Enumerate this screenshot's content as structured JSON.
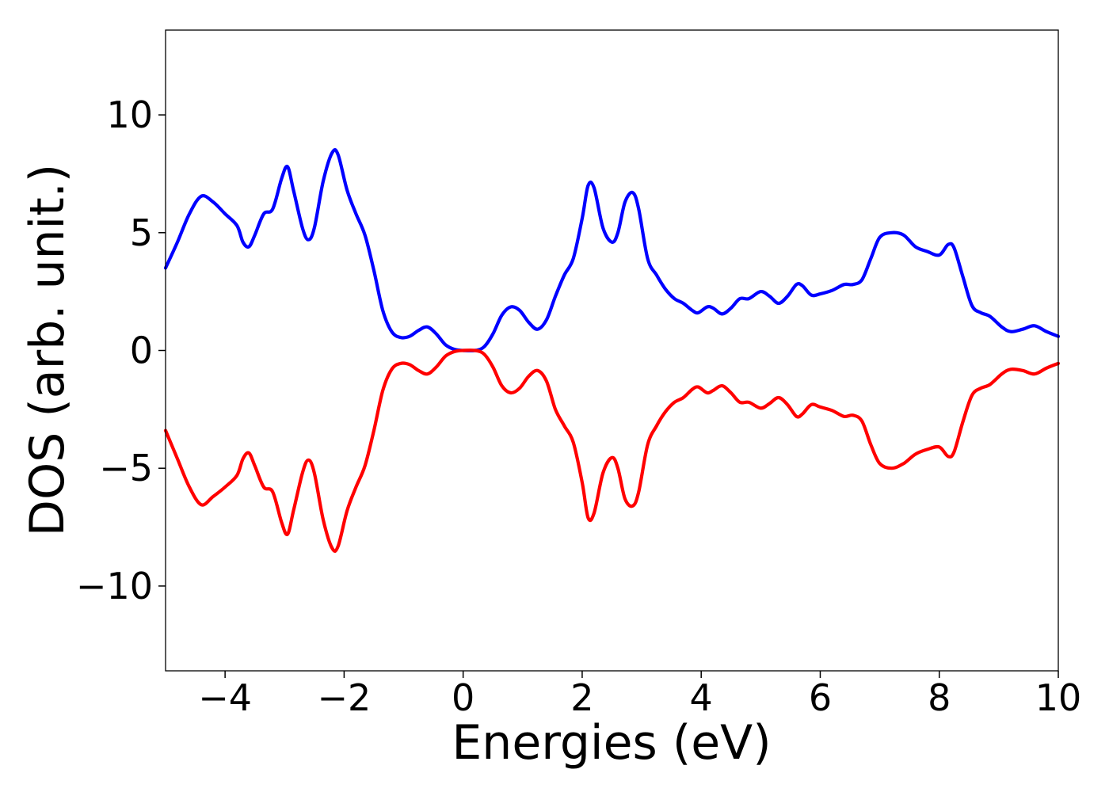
{
  "chart_data": {
    "type": "line",
    "title": "",
    "xlabel": "Energies (eV)",
    "ylabel": "DOS (arb. unit.)",
    "xlim": [
      -5,
      10
    ],
    "ylim": [
      -13.6,
      13.6
    ],
    "grid": false,
    "x_ticks": [
      -4,
      -2,
      0,
      2,
      4,
      6,
      8,
      10
    ],
    "x_tick_labels": [
      "−4",
      "−2",
      "0",
      "2",
      "4",
      "6",
      "8",
      "10"
    ],
    "y_ticks": [
      -10,
      -5,
      0,
      5,
      10
    ],
    "y_tick_labels": [
      "−10",
      "−5",
      "0",
      "5",
      "10"
    ],
    "series": [
      {
        "color": "#0000ff",
        "points": [
          [
            -5.0,
            3.5
          ],
          [
            -4.8,
            4.6
          ],
          [
            -4.6,
            5.8
          ],
          [
            -4.4,
            6.55
          ],
          [
            -4.2,
            6.3
          ],
          [
            -4.0,
            5.8
          ],
          [
            -3.8,
            5.3
          ],
          [
            -3.7,
            4.6
          ],
          [
            -3.6,
            4.4
          ],
          [
            -3.5,
            4.9
          ],
          [
            -3.35,
            5.8
          ],
          [
            -3.2,
            6.0
          ],
          [
            -3.05,
            7.3
          ],
          [
            -2.95,
            7.8
          ],
          [
            -2.85,
            6.8
          ],
          [
            -2.7,
            5.2
          ],
          [
            -2.6,
            4.7
          ],
          [
            -2.5,
            5.2
          ],
          [
            -2.35,
            7.2
          ],
          [
            -2.2,
            8.4
          ],
          [
            -2.1,
            8.3
          ],
          [
            -1.95,
            6.8
          ],
          [
            -1.8,
            5.8
          ],
          [
            -1.65,
            4.9
          ],
          [
            -1.5,
            3.4
          ],
          [
            -1.35,
            1.7
          ],
          [
            -1.2,
            0.8
          ],
          [
            -1.05,
            0.55
          ],
          [
            -0.9,
            0.6
          ],
          [
            -0.75,
            0.85
          ],
          [
            -0.6,
            1.0
          ],
          [
            -0.45,
            0.7
          ],
          [
            -0.3,
            0.25
          ],
          [
            -0.15,
            0.05
          ],
          [
            0.0,
            0.0
          ],
          [
            0.2,
            0.0
          ],
          [
            0.35,
            0.15
          ],
          [
            0.5,
            0.7
          ],
          [
            0.65,
            1.5
          ],
          [
            0.8,
            1.85
          ],
          [
            0.95,
            1.7
          ],
          [
            1.1,
            1.2
          ],
          [
            1.25,
            0.9
          ],
          [
            1.4,
            1.3
          ],
          [
            1.55,
            2.3
          ],
          [
            1.7,
            3.2
          ],
          [
            1.85,
            3.9
          ],
          [
            2.0,
            5.6
          ],
          [
            2.1,
            7.0
          ],
          [
            2.2,
            6.9
          ],
          [
            2.35,
            5.2
          ],
          [
            2.5,
            4.6
          ],
          [
            2.6,
            5.0
          ],
          [
            2.72,
            6.3
          ],
          [
            2.85,
            6.7
          ],
          [
            2.95,
            6.0
          ],
          [
            3.1,
            3.9
          ],
          [
            3.25,
            3.2
          ],
          [
            3.4,
            2.6
          ],
          [
            3.55,
            2.2
          ],
          [
            3.7,
            2.0
          ],
          [
            3.85,
            1.7
          ],
          [
            3.95,
            1.6
          ],
          [
            4.1,
            1.85
          ],
          [
            4.2,
            1.8
          ],
          [
            4.35,
            1.55
          ],
          [
            4.5,
            1.8
          ],
          [
            4.65,
            2.2
          ],
          [
            4.8,
            2.2
          ],
          [
            5.0,
            2.5
          ],
          [
            5.15,
            2.3
          ],
          [
            5.3,
            2.0
          ],
          [
            5.45,
            2.3
          ],
          [
            5.6,
            2.8
          ],
          [
            5.7,
            2.75
          ],
          [
            5.85,
            2.35
          ],
          [
            6.0,
            2.4
          ],
          [
            6.2,
            2.55
          ],
          [
            6.4,
            2.8
          ],
          [
            6.55,
            2.8
          ],
          [
            6.7,
            3.0
          ],
          [
            6.85,
            3.9
          ],
          [
            7.0,
            4.8
          ],
          [
            7.2,
            5.0
          ],
          [
            7.4,
            4.9
          ],
          [
            7.6,
            4.4
          ],
          [
            7.8,
            4.2
          ],
          [
            8.0,
            4.05
          ],
          [
            8.15,
            4.5
          ],
          [
            8.25,
            4.35
          ],
          [
            8.4,
            3.1
          ],
          [
            8.55,
            1.9
          ],
          [
            8.7,
            1.6
          ],
          [
            8.85,
            1.45
          ],
          [
            9.05,
            1.0
          ],
          [
            9.2,
            0.8
          ],
          [
            9.4,
            0.9
          ],
          [
            9.6,
            1.05
          ],
          [
            9.8,
            0.8
          ],
          [
            10.0,
            0.6
          ]
        ]
      },
      {
        "color": "#ff0000",
        "points": [
          [
            -5.0,
            -3.4
          ],
          [
            -4.8,
            -4.6
          ],
          [
            -4.6,
            -5.8
          ],
          [
            -4.4,
            -6.55
          ],
          [
            -4.2,
            -6.2
          ],
          [
            -4.0,
            -5.8
          ],
          [
            -3.8,
            -5.3
          ],
          [
            -3.7,
            -4.6
          ],
          [
            -3.6,
            -4.35
          ],
          [
            -3.5,
            -4.9
          ],
          [
            -3.35,
            -5.8
          ],
          [
            -3.2,
            -6.0
          ],
          [
            -3.05,
            -7.3
          ],
          [
            -2.95,
            -7.8
          ],
          [
            -2.85,
            -6.8
          ],
          [
            -2.7,
            -5.2
          ],
          [
            -2.6,
            -4.65
          ],
          [
            -2.5,
            -5.2
          ],
          [
            -2.35,
            -7.2
          ],
          [
            -2.2,
            -8.4
          ],
          [
            -2.1,
            -8.3
          ],
          [
            -1.95,
            -6.8
          ],
          [
            -1.8,
            -5.8
          ],
          [
            -1.65,
            -4.9
          ],
          [
            -1.5,
            -3.4
          ],
          [
            -1.35,
            -1.7
          ],
          [
            -1.2,
            -0.8
          ],
          [
            -1.05,
            -0.55
          ],
          [
            -0.9,
            -0.6
          ],
          [
            -0.75,
            -0.85
          ],
          [
            -0.6,
            -1.0
          ],
          [
            -0.45,
            -0.7
          ],
          [
            -0.3,
            -0.25
          ],
          [
            -0.15,
            -0.05
          ],
          [
            0.0,
            0.0
          ],
          [
            0.2,
            0.0
          ],
          [
            0.35,
            -0.15
          ],
          [
            0.5,
            -0.7
          ],
          [
            0.65,
            -1.5
          ],
          [
            0.8,
            -1.8
          ],
          [
            0.95,
            -1.6
          ],
          [
            1.1,
            -1.1
          ],
          [
            1.25,
            -0.85
          ],
          [
            1.4,
            -1.3
          ],
          [
            1.55,
            -2.5
          ],
          [
            1.7,
            -3.2
          ],
          [
            1.85,
            -3.9
          ],
          [
            2.0,
            -5.6
          ],
          [
            2.1,
            -7.1
          ],
          [
            2.2,
            -6.9
          ],
          [
            2.35,
            -5.2
          ],
          [
            2.5,
            -4.55
          ],
          [
            2.6,
            -5.0
          ],
          [
            2.72,
            -6.3
          ],
          [
            2.85,
            -6.6
          ],
          [
            2.95,
            -6.0
          ],
          [
            3.1,
            -4.0
          ],
          [
            3.25,
            -3.2
          ],
          [
            3.4,
            -2.6
          ],
          [
            3.55,
            -2.2
          ],
          [
            3.7,
            -2.0
          ],
          [
            3.85,
            -1.65
          ],
          [
            3.95,
            -1.55
          ],
          [
            4.1,
            -1.8
          ],
          [
            4.2,
            -1.7
          ],
          [
            4.35,
            -1.5
          ],
          [
            4.5,
            -1.8
          ],
          [
            4.65,
            -2.2
          ],
          [
            4.8,
            -2.2
          ],
          [
            5.0,
            -2.45
          ],
          [
            5.15,
            -2.25
          ],
          [
            5.3,
            -2.0
          ],
          [
            5.45,
            -2.3
          ],
          [
            5.6,
            -2.8
          ],
          [
            5.7,
            -2.7
          ],
          [
            5.85,
            -2.3
          ],
          [
            6.0,
            -2.4
          ],
          [
            6.2,
            -2.55
          ],
          [
            6.4,
            -2.8
          ],
          [
            6.55,
            -2.75
          ],
          [
            6.7,
            -3.0
          ],
          [
            6.85,
            -4.0
          ],
          [
            7.0,
            -4.8
          ],
          [
            7.2,
            -5.0
          ],
          [
            7.4,
            -4.8
          ],
          [
            7.6,
            -4.4
          ],
          [
            7.8,
            -4.2
          ],
          [
            8.0,
            -4.1
          ],
          [
            8.15,
            -4.5
          ],
          [
            8.25,
            -4.3
          ],
          [
            8.4,
            -3.0
          ],
          [
            8.55,
            -1.9
          ],
          [
            8.7,
            -1.6
          ],
          [
            8.85,
            -1.45
          ],
          [
            9.05,
            -1.0
          ],
          [
            9.2,
            -0.8
          ],
          [
            9.4,
            -0.85
          ],
          [
            9.6,
            -1.0
          ],
          [
            9.8,
            -0.75
          ],
          [
            10.0,
            -0.55
          ]
        ]
      }
    ]
  }
}
